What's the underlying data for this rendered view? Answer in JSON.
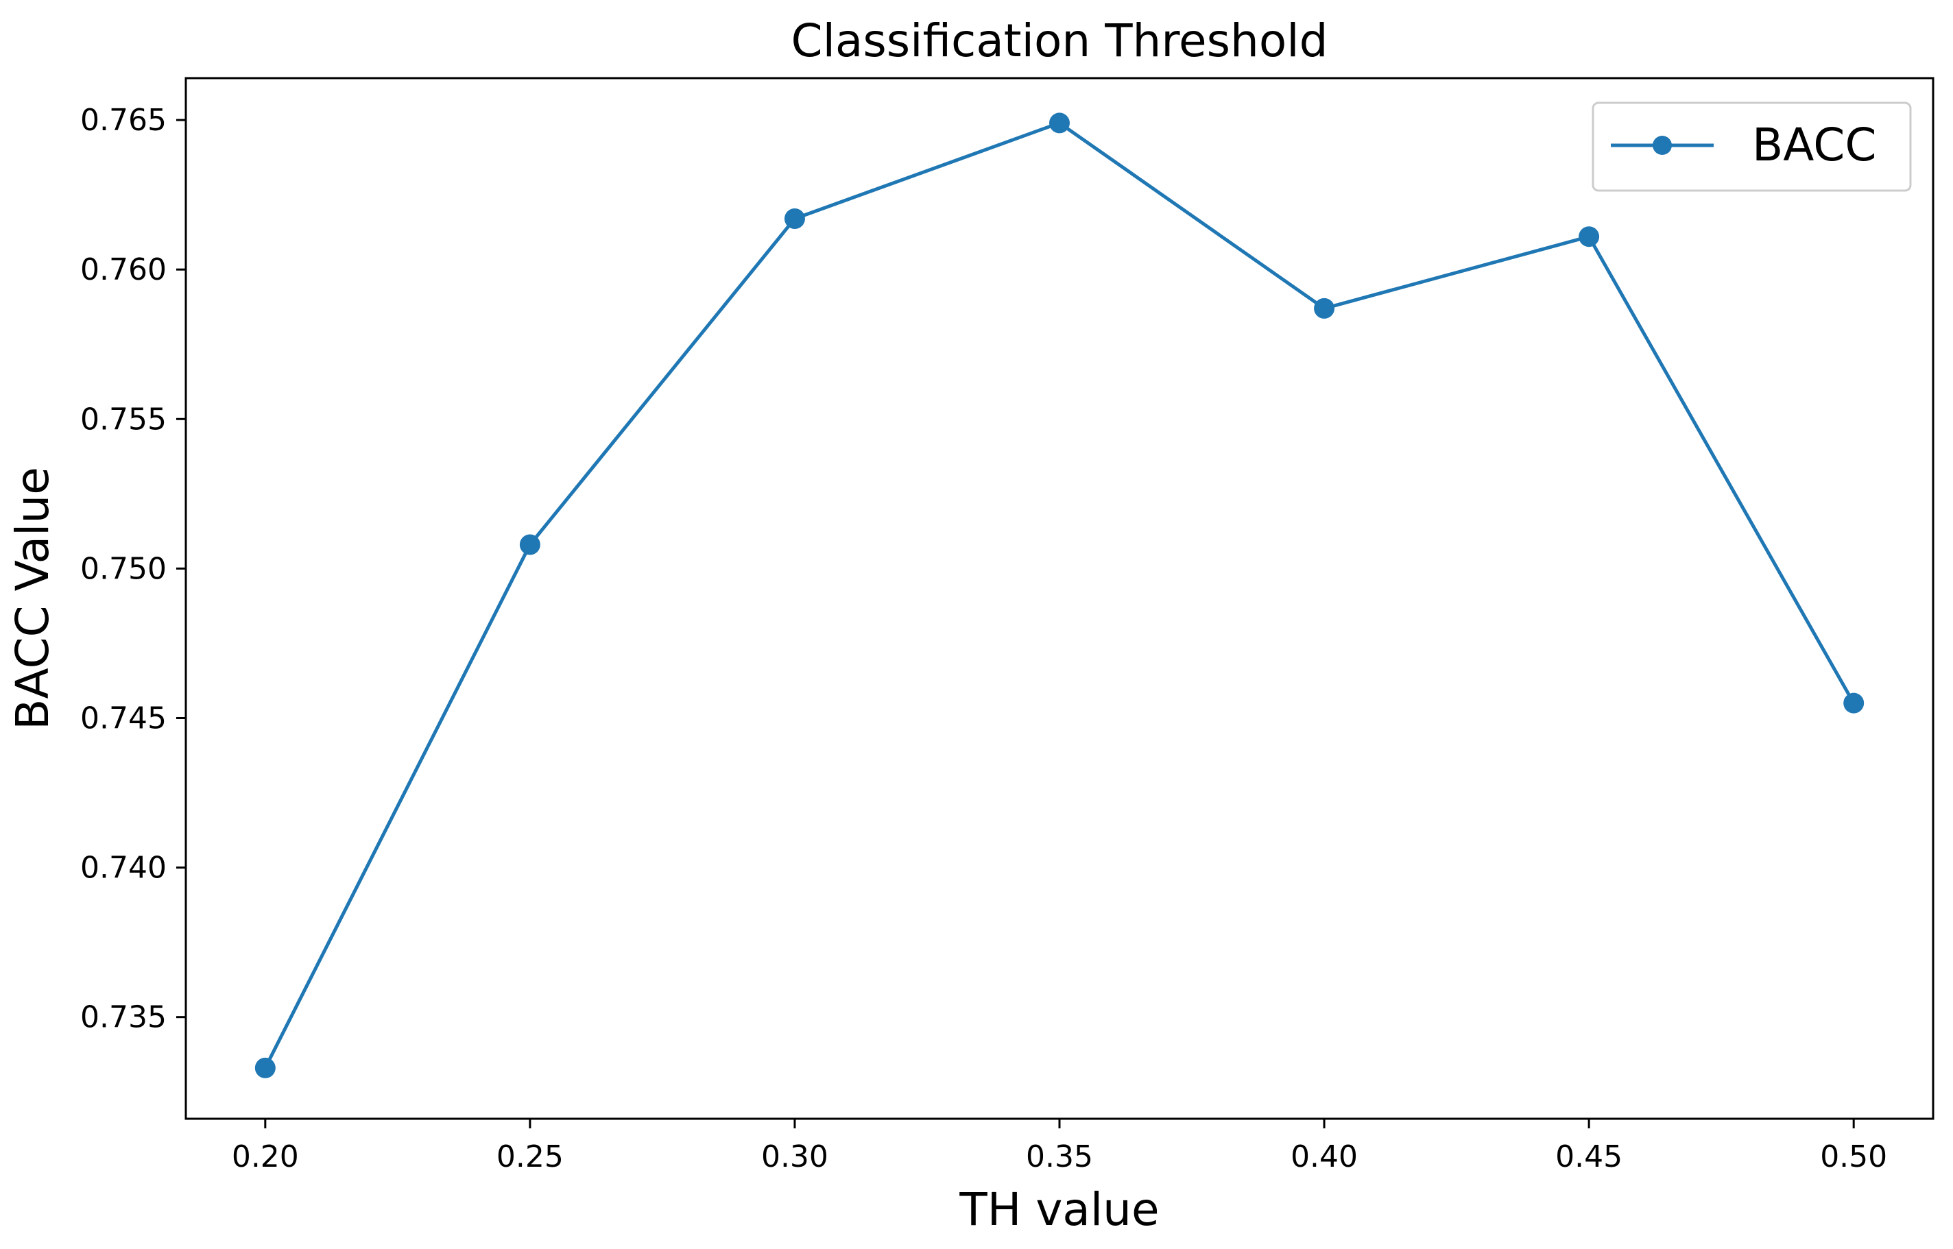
{
  "chart_data": {
    "type": "line",
    "title": "Classification Threshold",
    "xlabel": "TH value",
    "ylabel": "BACC Value",
    "x": [
      0.2,
      0.25,
      0.3,
      0.35,
      0.4,
      0.45,
      0.5
    ],
    "series": [
      {
        "name": "BACC",
        "values": [
          0.7333,
          0.7508,
          0.7617,
          0.7649,
          0.7587,
          0.7611,
          0.7455
        ],
        "color": "#1f77b4",
        "marker": "circle"
      }
    ],
    "xticks": [
      "0.20",
      "0.25",
      "0.30",
      "0.35",
      "0.40",
      "0.45",
      "0.50"
    ],
    "xtick_values": [
      0.2,
      0.25,
      0.3,
      0.35,
      0.4,
      0.45,
      0.5
    ],
    "yticks": [
      "0.735",
      "0.740",
      "0.745",
      "0.750",
      "0.755",
      "0.760",
      "0.765"
    ],
    "ytick_values": [
      0.735,
      0.74,
      0.745,
      0.75,
      0.755,
      0.76,
      0.765
    ],
    "xlim": [
      0.185,
      0.515
    ],
    "ylim": [
      0.7316,
      0.7664
    ],
    "grid": false,
    "legend_position": "top-right"
  }
}
